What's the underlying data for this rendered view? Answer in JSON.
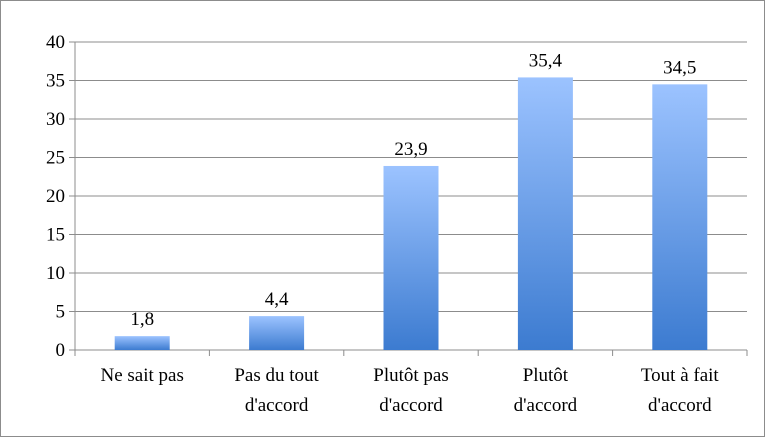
{
  "chart_data": {
    "type": "bar",
    "title": "",
    "xlabel": "",
    "ylabel": "",
    "categories": [
      [
        "Ne sait pas"
      ],
      [
        "Pas du tout",
        "d'accord"
      ],
      [
        "Plutôt pas",
        "d'accord"
      ],
      [
        "Plutôt",
        "d'accord"
      ],
      [
        "Tout à fait",
        "d'accord"
      ]
    ],
    "values": [
      1.8,
      4.4,
      23.9,
      35.4,
      34.5
    ],
    "value_labels": [
      "1,8",
      "4,4",
      "23,9",
      "35,4",
      "34,5"
    ],
    "ylim": [
      0,
      40
    ],
    "yticks": [
      "0",
      "5",
      "10",
      "15",
      "20",
      "25",
      "30",
      "35",
      "40"
    ],
    "grid": true,
    "legend": "none",
    "colors": {
      "bar_top": "#9cc3ff",
      "bar_bottom": "#3c7bd0",
      "grid": "#8c8c8c",
      "axis": "#8c8c8c"
    }
  }
}
